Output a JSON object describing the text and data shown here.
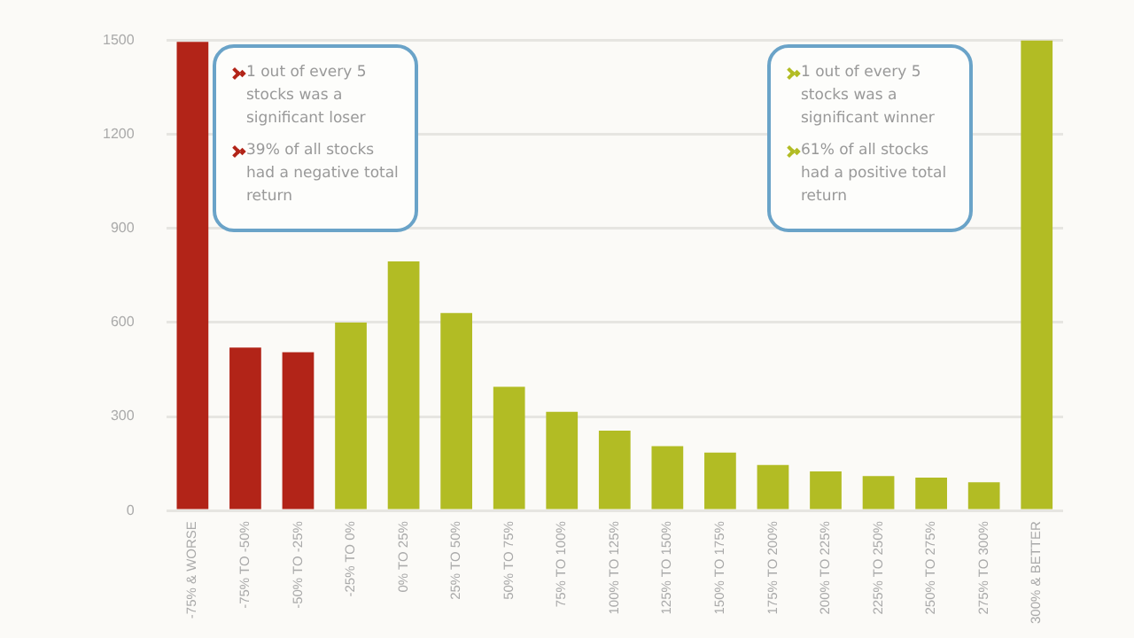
{
  "chart_data": {
    "type": "bar",
    "categories": [
      "-75% & WORSE",
      "-75% TO -50%",
      "-50% TO -25%",
      "-25% TO 0%",
      "0% TO 25%",
      "25% TO 50%",
      "50% TO 75%",
      "75% TO 100%",
      "100% TO 125%",
      "125% TO 150%",
      "150% TO 175%",
      "175% TO 200%",
      "200% TO 225%",
      "225% TO 250%",
      "250% TO 275%",
      "275% TO 300%",
      "300% & BETTER"
    ],
    "values": [
      1495,
      520,
      505,
      600,
      795,
      630,
      395,
      315,
      255,
      205,
      185,
      145,
      125,
      110,
      105,
      90,
      1500
    ],
    "colors": [
      "#b22418",
      "#b22418",
      "#b22418",
      "#b2bc24",
      "#b2bc24",
      "#b2bc24",
      "#b2bc24",
      "#b2bc24",
      "#b2bc24",
      "#b2bc24",
      "#b2bc24",
      "#b2bc24",
      "#b2bc24",
      "#b2bc24",
      "#b2bc24",
      "#b2bc24",
      "#b2bc24"
    ],
    "ylim": [
      0,
      1500
    ],
    "yticks": [
      0,
      300,
      600,
      900,
      1200,
      1500
    ],
    "grid": "y",
    "legend": false,
    "annotations": [
      "1 out of every 5 stocks was a significant loser",
      "39% of all stocks had a negative total return",
      "1 out of every 5 stocks was a significant winner",
      "61% of all stocks had a positive total return"
    ]
  }
}
